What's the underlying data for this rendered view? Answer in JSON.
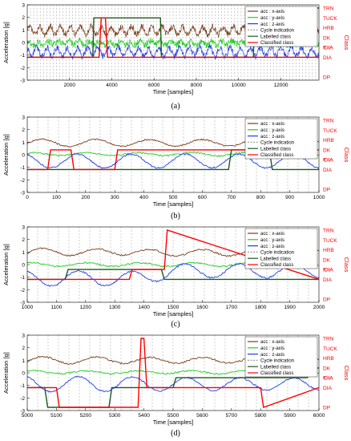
{
  "figure": {
    "panels": [
      {
        "caption": "(a)",
        "ylabel": "Acceleration [g]",
        "xlabel": "Time [samples]",
        "right_label": "Class",
        "xlim": [
          0,
          13800
        ],
        "ylim": [
          -3,
          3
        ],
        "x_ticks": [
          "2000",
          "4000",
          "6000",
          "8000",
          "10000",
          "12000"
        ],
        "x_tick_values": [
          2000,
          4000,
          6000,
          8000,
          10000,
          12000
        ],
        "y_ticks": [
          "3",
          "2",
          "1",
          "0",
          "-1",
          "-2",
          "-3"
        ],
        "class_labels": [
          "TRN",
          "TUCK",
          "HRB",
          "DK",
          "fDIA",
          "DIA",
          "fDIA",
          "DP"
        ],
        "legend": [
          "acc : x-axis",
          "acc : y-axis",
          "acc : z-axis",
          "Cycle indication",
          "Labelled class",
          "Classified class"
        ],
        "legend_position": "top-right"
      },
      {
        "caption": "(b)",
        "ylabel": "Acceleration [g]",
        "xlabel": "Time [samples]",
        "right_label": "Class",
        "xlim": [
          0,
          1000
        ],
        "ylim": [
          -3,
          3
        ],
        "x_ticks": [
          "0",
          "100",
          "200",
          "300",
          "400",
          "500",
          "600",
          "700",
          "800",
          "900",
          "1000"
        ],
        "x_tick_values": [
          0,
          100,
          200,
          300,
          400,
          500,
          600,
          700,
          800,
          900,
          1000
        ],
        "y_ticks": [
          "3",
          "2",
          "1",
          "0",
          "-1",
          "-2",
          "-3"
        ],
        "class_labels": [
          "TRN",
          "TUCK",
          "HRB",
          "DK",
          "fDIA",
          "DIA",
          "fDIA",
          "DP"
        ],
        "legend": [
          "acc : x-axis",
          "acc : y-axis",
          "acc : z-axis",
          "Cycle indication",
          "Labelled class",
          "Classified class"
        ],
        "legend_position": "top-right"
      },
      {
        "caption": "(c)",
        "ylabel": "Acceleration [g]",
        "xlabel": "Time [samples]",
        "right_label": "Class",
        "xlim": [
          1000,
          2000
        ],
        "ylim": [
          -3,
          3
        ],
        "x_ticks": [
          "1000",
          "1100",
          "1200",
          "1300",
          "1400",
          "1500",
          "1600",
          "1700",
          "1800",
          "1900",
          "2000"
        ],
        "x_tick_values": [
          1000,
          1100,
          1200,
          1300,
          1400,
          1500,
          1600,
          1700,
          1800,
          1900,
          2000
        ],
        "y_ticks": [
          "3",
          "2",
          "1",
          "0",
          "-1",
          "-2",
          "-3"
        ],
        "class_labels": [
          "TRN",
          "TUCK",
          "HRB",
          "DK",
          "fDIA",
          "DIA",
          "fDIA",
          "DP"
        ],
        "legend": [
          "acc : x-axis",
          "acc : y-axis",
          "acc : z-axis",
          "Cycle indication",
          "Labelled class",
          "Classified class"
        ],
        "legend_position": "top-right"
      },
      {
        "caption": "(d)",
        "ylabel": "Acceleration [g]",
        "xlabel": "Time [samples]",
        "right_label": "Class",
        "xlim": [
          5000,
          6000
        ],
        "ylim": [
          -3,
          3
        ],
        "x_ticks": [
          "5000",
          "5100",
          "5200",
          "5300",
          "5400",
          "5500",
          "5600",
          "5700",
          "5800",
          "5900",
          "6000"
        ],
        "x_tick_values": [
          5000,
          5100,
          5200,
          5300,
          5400,
          5500,
          5600,
          5700,
          5800,
          5900,
          6000
        ],
        "y_ticks": [
          "3",
          "2",
          "1",
          "0",
          "-1",
          "-2",
          "-3"
        ],
        "class_labels": [
          "TRN",
          "TUCK",
          "HRB",
          "DK",
          "fDIA",
          "DIA",
          "fDIA",
          "DP"
        ],
        "legend": [
          "acc : x-axis",
          "acc : y-axis",
          "acc : z-axis",
          "Cycle indication",
          "Labelled class",
          "Classified class"
        ],
        "legend_position": "top-right"
      }
    ],
    "colors": {
      "x_axis": "#7a3d1a",
      "y_axis": "#22cc22",
      "z_axis": "#1f3fe6",
      "cycle": "#a0a0a0",
      "labelled": "#1e5a1e",
      "classified": "#ff0000",
      "class_text": "#ff0000"
    }
  },
  "chart_data": [
    {
      "type": "line",
      "title": "",
      "xlabel": "Time [samples]",
      "ylabel": "Acceleration [g]",
      "xlim": [
        0,
        13800
      ],
      "ylim": [
        -3,
        3
      ],
      "grid": false,
      "legend_position": "top-right",
      "series": [
        {
          "name": "acc : x-axis",
          "x": [
            0,
            2000,
            4000,
            6000,
            8000,
            10000,
            12000,
            13800
          ],
          "values": [
            0.9,
            1.0,
            0.9,
            1.0,
            0.9,
            1.0,
            0.9,
            1.0
          ]
        },
        {
          "name": "acc : y-axis",
          "x": [
            0,
            2000,
            4000,
            6000,
            8000,
            10000,
            12000,
            13800
          ],
          "values": [
            -0.1,
            0.0,
            -0.1,
            0.0,
            -0.1,
            0.0,
            -0.1,
            0.0
          ]
        },
        {
          "name": "acc : z-axis",
          "x": [
            0,
            2000,
            4000,
            6000,
            8000,
            10000,
            12000,
            13800
          ],
          "values": [
            -0.7,
            -0.8,
            -0.7,
            -0.8,
            -0.7,
            -0.8,
            -0.7,
            -0.8
          ]
        },
        {
          "name": "Labelled class",
          "x": [
            0,
            3100,
            3150,
            6300,
            6350,
            10700,
            10750,
            13800
          ],
          "values": [
            "DIA",
            "DIA",
            "TUCK",
            "TUCK",
            "DIA",
            "DIA",
            "TRN",
            "TRN"
          ]
        },
        {
          "name": "Classified class",
          "x": [
            0,
            3400,
            3500,
            3700,
            3800,
            13800
          ],
          "values": [
            "DIA",
            "DIA",
            "TUCK",
            "TUCK",
            "DIA",
            "DIA"
          ]
        }
      ]
    },
    {
      "type": "line",
      "title": "",
      "xlabel": "Time [samples]",
      "ylabel": "Acceleration [g]",
      "xlim": [
        0,
        1000
      ],
      "ylim": [
        -3,
        3
      ],
      "grid": false,
      "legend_position": "top-right",
      "series": [
        {
          "name": "acc : x-axis",
          "x": [
            0,
            100,
            200,
            300,
            400,
            500,
            600,
            700,
            800,
            900,
            1000
          ],
          "values": [
            0.9,
            1.0,
            0.9,
            1.0,
            0.9,
            1.0,
            0.9,
            1.0,
            0.9,
            1.0,
            0.9
          ]
        },
        {
          "name": "acc : y-axis",
          "x": [
            0,
            100,
            200,
            300,
            400,
            500,
            600,
            700,
            800,
            900,
            1000
          ],
          "values": [
            0.0,
            0.1,
            0.0,
            0.1,
            0.0,
            0.1,
            0.0,
            0.1,
            0.0,
            0.1,
            0.0
          ]
        },
        {
          "name": "acc : z-axis",
          "x": [
            0,
            100,
            200,
            300,
            400,
            500,
            600,
            700,
            800,
            900,
            1000
          ],
          "values": [
            -0.5,
            -0.5,
            -0.5,
            -0.5,
            -0.5,
            -0.5,
            -0.5,
            -0.5,
            -0.5,
            -0.5,
            -0.5
          ]
        },
        {
          "name": "Labelled class",
          "x": [
            0,
            690,
            700,
            830,
            840,
            1000
          ],
          "values": [
            "DIA",
            "DIA",
            "DK",
            "DK",
            "DIA",
            "DIA"
          ]
        },
        {
          "name": "Classified class",
          "x": [
            0,
            70,
            80,
            150,
            160,
            300,
            310,
            1000
          ],
          "values": [
            "DIA",
            "DIA",
            "DK",
            "DK",
            "DIA",
            "DIA",
            "DK",
            "DK"
          ]
        }
      ]
    },
    {
      "type": "line",
      "title": "",
      "xlabel": "Time [samples]",
      "ylabel": "Acceleration [g]",
      "xlim": [
        1000,
        2000
      ],
      "ylim": [
        -3,
        3
      ],
      "grid": false,
      "legend_position": "top-right",
      "series": [
        {
          "name": "acc : x-axis",
          "x": [
            1000,
            1100,
            1200,
            1300,
            1400,
            1500,
            1600,
            1700,
            1800,
            1900,
            2000
          ],
          "values": [
            0.9,
            1.1,
            0.9,
            1.1,
            0.9,
            1.0,
            0.9,
            1.0,
            0.9,
            1.0,
            0.9
          ]
        },
        {
          "name": "acc : y-axis",
          "x": [
            1000,
            1100,
            1200,
            1300,
            1400,
            1500,
            1600,
            1700,
            1800,
            1900,
            2000
          ],
          "values": [
            0.0,
            0.0,
            0.0,
            0.0,
            0.0,
            0.0,
            0.0,
            0.0,
            0.0,
            0.0,
            0.0
          ]
        },
        {
          "name": "acc : z-axis",
          "x": [
            1000,
            1100,
            1200,
            1300,
            1400,
            1500,
            1600,
            1700,
            1800,
            1900,
            2000
          ],
          "values": [
            -1.0,
            -1.2,
            -1.0,
            -1.2,
            -1.0,
            -0.5,
            -0.5,
            -0.5,
            -0.5,
            -0.5,
            -0.5
          ]
        },
        {
          "name": "Labelled class",
          "x": [
            1000,
            1130,
            1140,
            1460,
            1470,
            2000
          ],
          "values": [
            "DIA",
            "DIA",
            "fDIA",
            "fDIA",
            "DIA",
            "DIA"
          ]
        },
        {
          "name": "Classified class",
          "x": [
            1000,
            1350,
            1360,
            1470,
            1480,
            2000
          ],
          "values": [
            "DIA",
            "DIA",
            "fDIA",
            "fDIA",
            "TRN",
            "DIA"
          ]
        }
      ]
    },
    {
      "type": "line",
      "title": "",
      "xlabel": "Time [samples]",
      "ylabel": "Acceleration [g]",
      "xlim": [
        5000,
        6000
      ],
      "ylim": [
        -3,
        3
      ],
      "grid": false,
      "legend_position": "top-right",
      "series": [
        {
          "name": "acc : x-axis",
          "x": [
            5000,
            5100,
            5200,
            5300,
            5400,
            5500,
            5600,
            5700,
            5800,
            5900,
            6000
          ],
          "values": [
            0.9,
            1.1,
            0.9,
            1.1,
            0.9,
            1.1,
            0.9,
            1.1,
            0.9,
            1.1,
            0.9
          ]
        },
        {
          "name": "acc : y-axis",
          "x": [
            5000,
            5100,
            5200,
            5300,
            5400,
            5500,
            5600,
            5700,
            5800,
            5900,
            6000
          ],
          "values": [
            0.0,
            0.1,
            0.0,
            0.1,
            0.0,
            0.1,
            0.0,
            0.1,
            0.0,
            0.1,
            0.0
          ]
        },
        {
          "name": "acc : z-axis",
          "x": [
            5000,
            5100,
            5200,
            5300,
            5400,
            5500,
            5600,
            5700,
            5800,
            5900,
            6000
          ],
          "values": [
            -0.8,
            -1.0,
            -0.8,
            -1.0,
            -0.8,
            -1.0,
            -0.8,
            -1.0,
            -0.8,
            -1.0,
            -0.8
          ]
        },
        {
          "name": "Labelled class",
          "x": [
            5000,
            5060,
            5070,
            5280,
            5290,
            5500,
            5510,
            5960,
            5970,
            6000
          ],
          "values": [
            "DIA",
            "DIA",
            "DP",
            "DP",
            "DIA",
            "DIA",
            "fDIA",
            "fDIA",
            "DK",
            "DK"
          ]
        },
        {
          "name": "Classified class",
          "x": [
            5000,
            5100,
            5110,
            5380,
            5390,
            5400,
            5410,
            5800,
            5810,
            6000
          ],
          "values": [
            "DIA",
            "DIA",
            "DP",
            "DP",
            "TRN",
            "TRN",
            "DIA",
            "DIA",
            "DP",
            "DIA"
          ]
        }
      ]
    }
  ]
}
